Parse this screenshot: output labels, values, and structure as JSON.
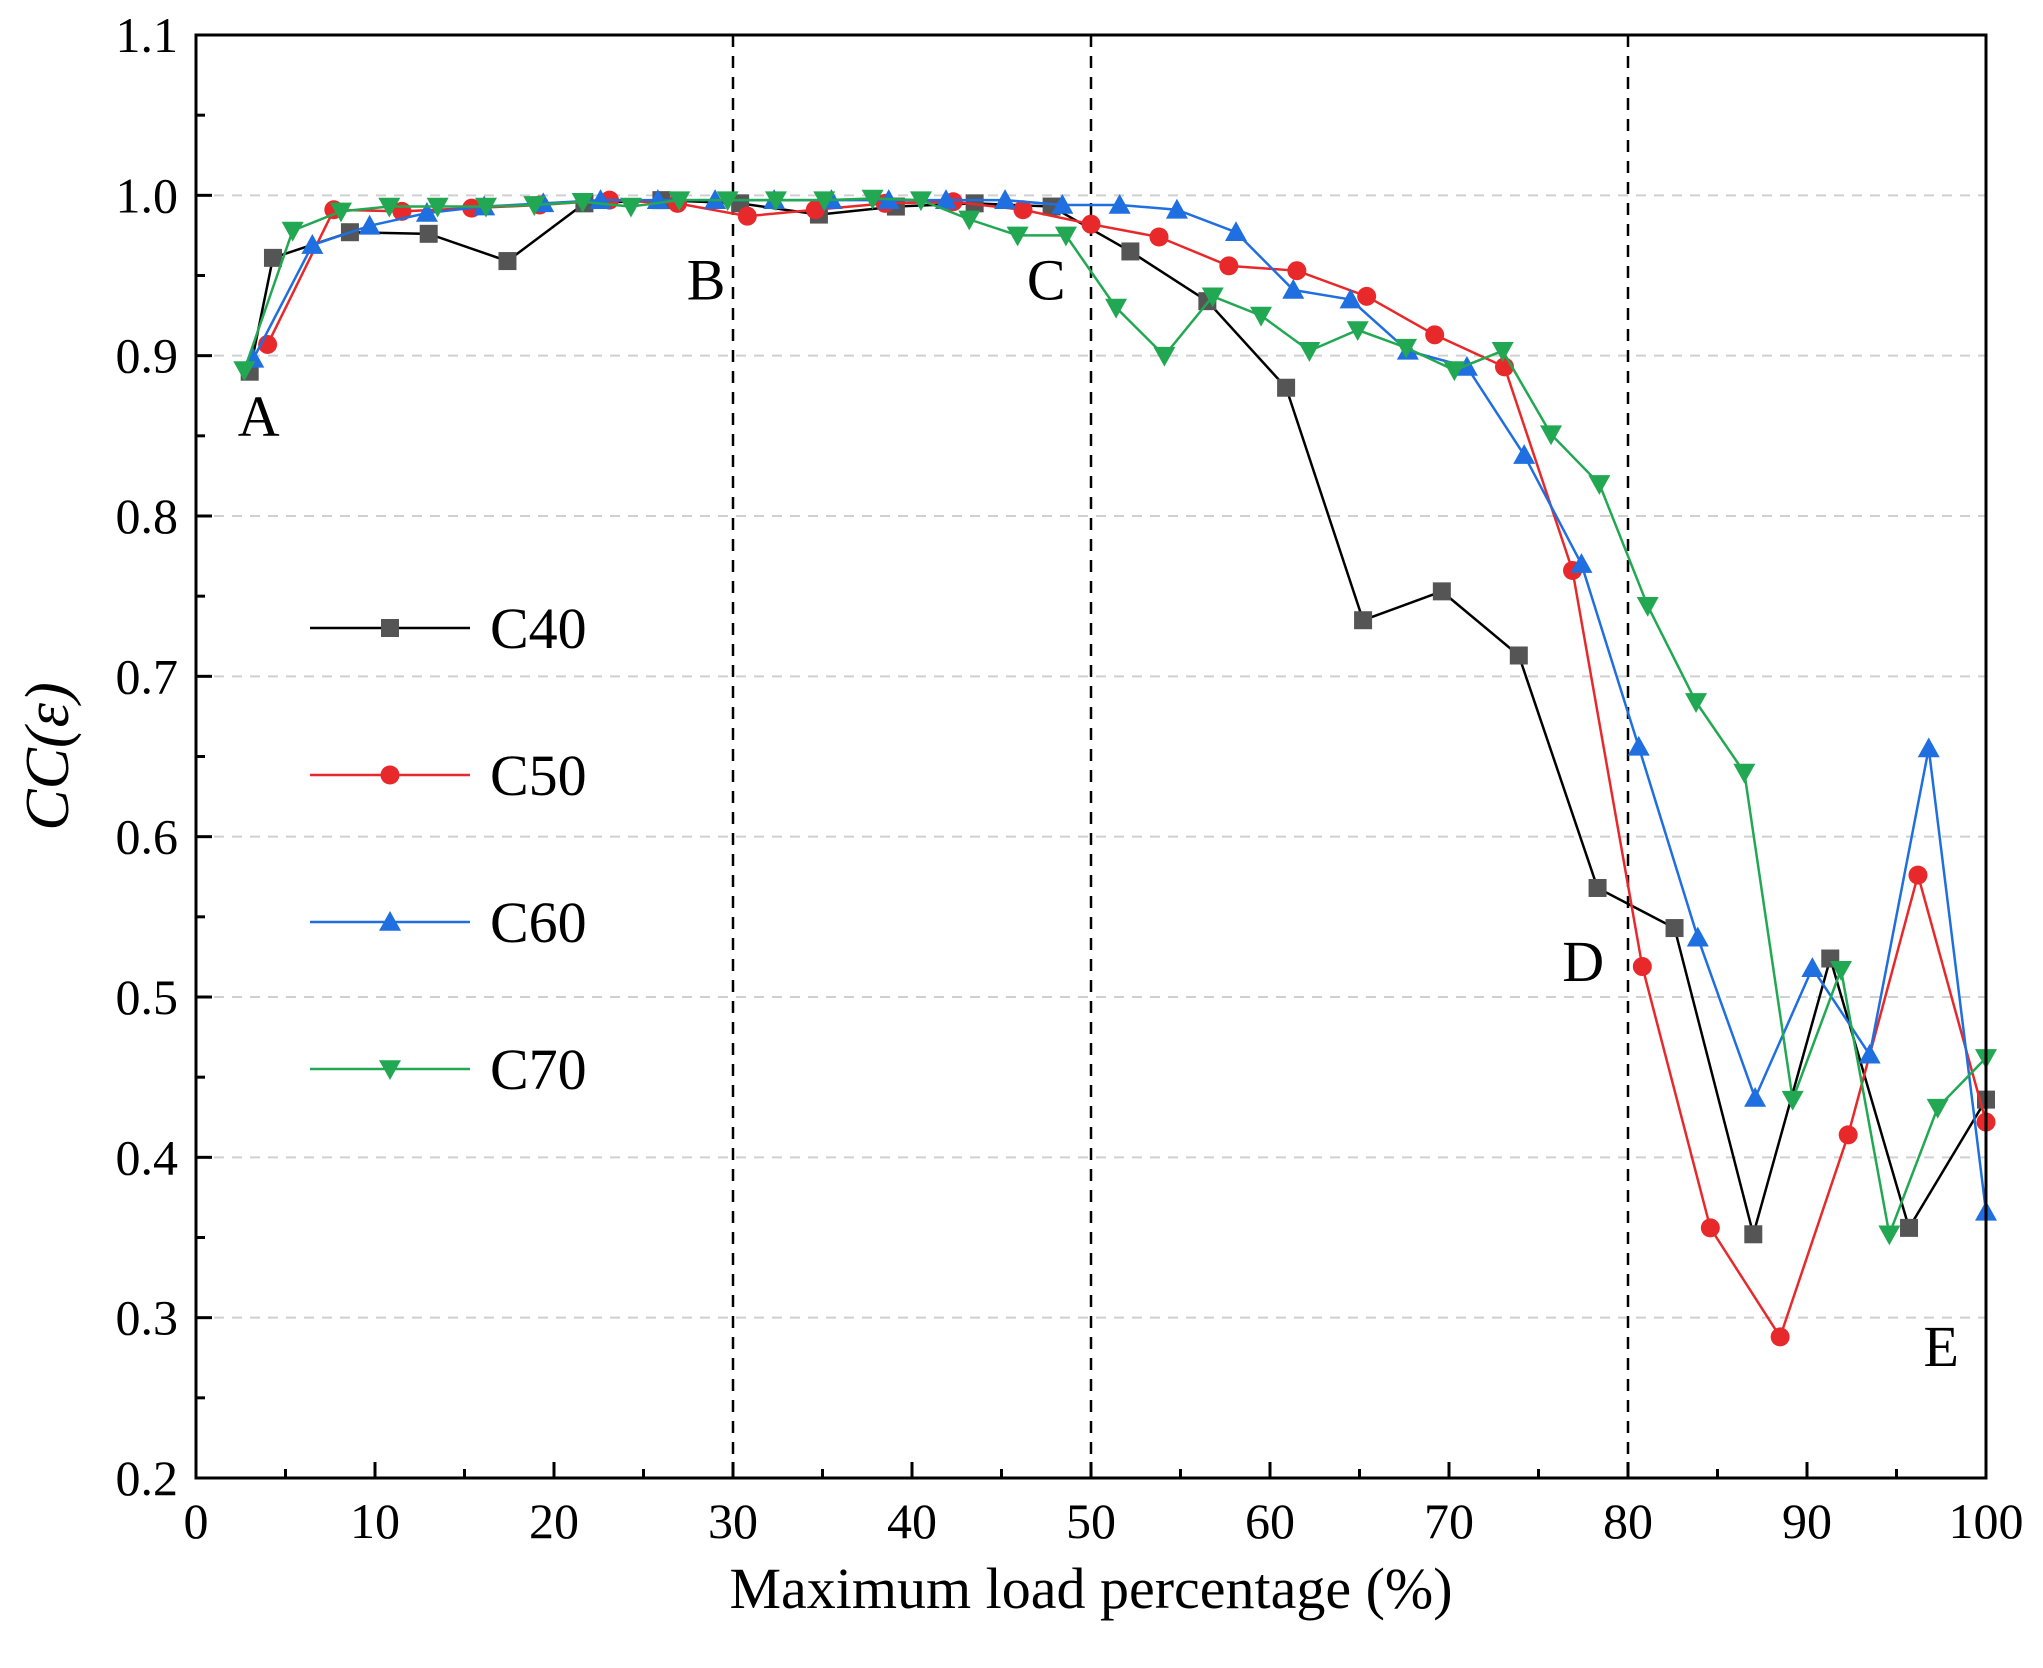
{
  "chart_data": {
    "type": "line",
    "title": "",
    "xlabel": "Maximum load percentage  (%)",
    "ylabel": "CC(ε)",
    "xlim": [
      0,
      100
    ],
    "ylim": [
      0.2,
      1.1
    ],
    "x_ticks": [
      "0",
      "10",
      "20",
      "30",
      "40",
      "50",
      "60",
      "70",
      "80",
      "90",
      "100"
    ],
    "y_ticks": [
      "0.2",
      "0.3",
      "0.4",
      "0.5",
      "0.6",
      "0.7",
      "0.8",
      "0.9",
      "1.0",
      "1.1"
    ],
    "grid": "horizontal-dashed",
    "legend_position": "center-left",
    "vlines": [
      30,
      50,
      80
    ],
    "annotations": [
      {
        "text": "A",
        "x": 3.5,
        "y": 0.85
      },
      {
        "text": "B",
        "x": 28.5,
        "y": 0.935
      },
      {
        "text": "C",
        "x": 47.5,
        "y": 0.935
      },
      {
        "text": "D",
        "x": 77.5,
        "y": 0.51
      },
      {
        "text": "E",
        "x": 97.5,
        "y": 0.27
      }
    ],
    "series": [
      {
        "name": "C40",
        "color": "#000000",
        "marker": "square",
        "x": [
          3,
          4.3,
          8.6,
          13,
          17.4,
          21.7,
          26,
          30.4,
          34.8,
          39.1,
          43.5,
          47.8,
          52.2,
          56.5,
          60.9,
          65.2,
          69.6,
          73.9,
          78.3,
          82.6,
          87,
          91.3,
          95.7,
          100
        ],
        "y": [
          0.89,
          0.961,
          0.977,
          0.976,
          0.959,
          0.995,
          0.997,
          0.995,
          0.988,
          0.993,
          0.995,
          0.993,
          0.965,
          0.934,
          0.88,
          0.735,
          0.753,
          0.713,
          0.568,
          0.543,
          0.352,
          0.524,
          0.356,
          0.436
        ]
      },
      {
        "name": "C50",
        "color": "#e8292b",
        "marker": "circle",
        "x": [
          4,
          7.7,
          11.5,
          15.4,
          19.2,
          23.1,
          26.9,
          30.8,
          34.6,
          38.5,
          42.3,
          46.2,
          50,
          53.8,
          57.7,
          61.5,
          65.4,
          69.2,
          73.1,
          76.9,
          80.8,
          84.6,
          88.5,
          92.3,
          96.2,
          100
        ],
        "y": [
          0.907,
          0.991,
          0.99,
          0.992,
          0.994,
          0.997,
          0.995,
          0.987,
          0.991,
          0.995,
          0.996,
          0.991,
          0.982,
          0.974,
          0.956,
          0.953,
          0.937,
          0.913,
          0.893,
          0.766,
          0.519,
          0.356,
          0.288,
          0.414,
          0.576,
          0.422
        ]
      },
      {
        "name": "C60",
        "color": "#1f6fe0",
        "marker": "triangle-up",
        "x": [
          3.2,
          6.5,
          9.7,
          12.9,
          16.1,
          19.4,
          22.6,
          25.8,
          29,
          32.3,
          35.5,
          38.7,
          41.9,
          45.2,
          48.4,
          51.6,
          54.8,
          58.1,
          61.3,
          64.5,
          67.7,
          71,
          74.2,
          77.4,
          80.6,
          83.9,
          87.1,
          90.3,
          93.5,
          96.8,
          100
        ],
        "y": [
          0.898,
          0.969,
          0.981,
          0.989,
          0.993,
          0.995,
          0.997,
          0.997,
          0.997,
          0.997,
          0.997,
          0.997,
          0.997,
          0.997,
          0.994,
          0.994,
          0.991,
          0.977,
          0.941,
          0.935,
          0.903,
          0.893,
          0.838,
          0.77,
          0.656,
          0.537,
          0.437,
          0.518,
          0.464,
          0.655,
          0.366
        ]
      },
      {
        "name": "C70",
        "color": "#22a852",
        "marker": "triangle-down",
        "x": [
          2.7,
          5.4,
          8.1,
          10.8,
          13.5,
          16.2,
          18.9,
          21.6,
          24.3,
          27,
          29.7,
          32.4,
          35.1,
          37.8,
          40.5,
          43.2,
          45.9,
          48.6,
          51.4,
          54.1,
          56.8,
          59.5,
          62.2,
          64.9,
          67.6,
          70.3,
          73,
          75.7,
          78.4,
          81.1,
          83.8,
          86.5,
          89.2,
          91.9,
          94.6,
          97.3,
          100
        ],
        "y": [
          0.891,
          0.978,
          0.99,
          0.993,
          0.993,
          0.993,
          0.994,
          0.996,
          0.993,
          0.997,
          0.997,
          0.997,
          0.997,
          0.998,
          0.997,
          0.985,
          0.975,
          0.975,
          0.93,
          0.9,
          0.937,
          0.925,
          0.903,
          0.916,
          0.905,
          0.891,
          0.903,
          0.851,
          0.82,
          0.744,
          0.684,
          0.64,
          0.436,
          0.517,
          0.352,
          0.431,
          0.462
        ]
      }
    ]
  }
}
